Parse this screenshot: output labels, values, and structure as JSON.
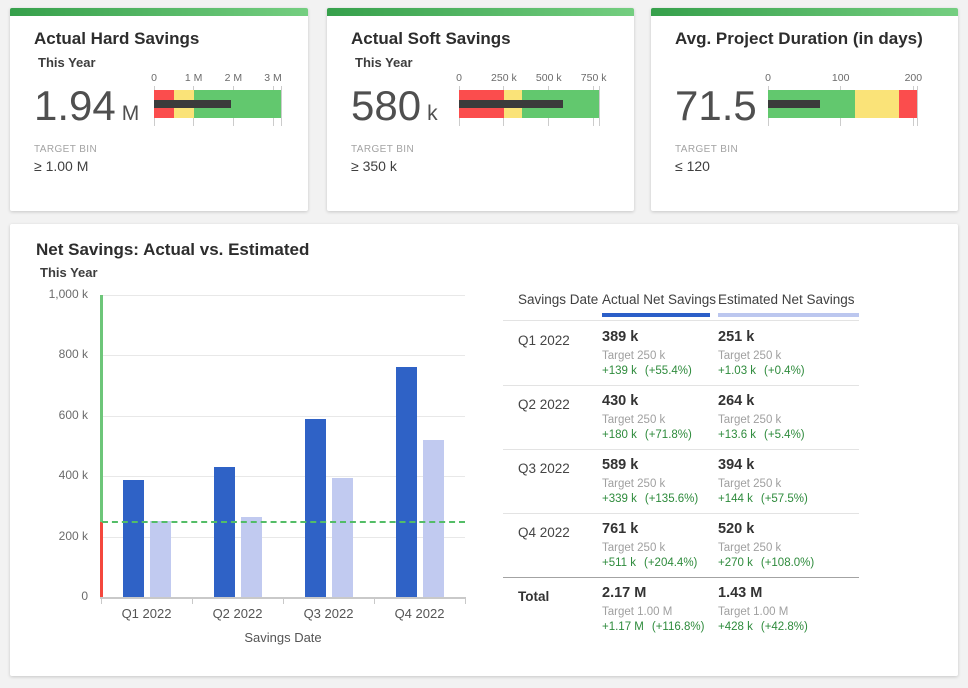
{
  "page": {
    "background": "#f2f2f2"
  },
  "card_strip": {
    "from": "#36a04b",
    "to": "#74ce80"
  },
  "chart_data": [
    {
      "type": "bullet",
      "title": "Actual Hard Savings",
      "subtitle": "This Year",
      "value_display": "1.94",
      "unit": "M",
      "measure": 1.94,
      "axis_max": 3.2,
      "ticks": [
        {
          "value": 0,
          "label": "0"
        },
        {
          "value": 1,
          "label": "1 M"
        },
        {
          "value": 2,
          "label": "2 M"
        },
        {
          "value": 3,
          "label": "3 M"
        }
      ],
      "bands": [
        {
          "from": 0,
          "to": 0.5,
          "color": "#fb4d4d"
        },
        {
          "from": 0.5,
          "to": 1,
          "color": "#fae378"
        },
        {
          "from": 1,
          "to": 3.2,
          "color": "#62c86e"
        }
      ],
      "measure_color": "#3b3b3b",
      "target_bin_label": "TARGET BIN",
      "target_bin": "≥ 1.00 M"
    },
    {
      "type": "bullet",
      "title": "Actual Soft Savings",
      "subtitle": "This Year",
      "value_display": "580",
      "unit": "k",
      "measure": 580,
      "axis_max": 780,
      "ticks": [
        {
          "value": 0,
          "label": "0"
        },
        {
          "value": 250,
          "label": "250 k"
        },
        {
          "value": 500,
          "label": "500 k"
        },
        {
          "value": 750,
          "label": "750 k"
        }
      ],
      "bands": [
        {
          "from": 0,
          "to": 250,
          "color": "#fb4d4d"
        },
        {
          "from": 250,
          "to": 350,
          "color": "#fae378"
        },
        {
          "from": 350,
          "to": 780,
          "color": "#62c86e"
        }
      ],
      "measure_color": "#3b3b3b",
      "target_bin_label": "TARGET BIN",
      "target_bin": "≥ 350 k"
    },
    {
      "type": "bullet",
      "title": "Avg. Project Duration (in days)",
      "subtitle": "",
      "value_display": "71.5",
      "unit": "",
      "measure": 71.5,
      "axis_max": 205,
      "ticks": [
        {
          "value": 0,
          "label": "0"
        },
        {
          "value": 100,
          "label": "100"
        },
        {
          "value": 200,
          "label": "200"
        }
      ],
      "bands": [
        {
          "from": 0,
          "to": 120,
          "color": "#62c86e"
        },
        {
          "from": 120,
          "to": 180,
          "color": "#fae378"
        },
        {
          "from": 180,
          "to": 205,
          "color": "#fb4d4d"
        }
      ],
      "measure_color": "#3b3b3b",
      "target_bin_label": "TARGET BIN",
      "target_bin": "≤ 120"
    },
    {
      "type": "bar",
      "title": "Net Savings: Actual vs. Estimated",
      "subtitle": "This Year",
      "categories": [
        "Q1 2022",
        "Q2 2022",
        "Q3 2022",
        "Q4 2022"
      ],
      "series": [
        {
          "name": "Actual Net Savings",
          "color": "#2f62c6",
          "values": [
            389,
            430,
            589,
            761
          ]
        },
        {
          "name": "Estimated Net Savings",
          "color": "#c1caf0",
          "values": [
            251,
            264,
            394,
            520
          ]
        }
      ],
      "unit": "k",
      "target_value": 250,
      "target_color": "#53bd67",
      "axis_color_above_target": "#6dc679",
      "axis_color_below_target": "#f4473d",
      "xlabel": "Savings Date",
      "ylim": [
        0,
        1000
      ],
      "yticks": [
        {
          "value": 0,
          "label": "0"
        },
        {
          "value": 200,
          "label": "200 k"
        },
        {
          "value": 400,
          "label": "400 k"
        },
        {
          "value": 600,
          "label": "600 k"
        },
        {
          "value": 800,
          "label": "800 k"
        },
        {
          "value": 1000,
          "label": "1,000 k"
        }
      ],
      "grid": true,
      "legend_position": "table-header"
    },
    {
      "type": "table",
      "positive_color": "#2e8b3c",
      "columns": [
        {
          "label": "Savings Date",
          "underline_color": null
        },
        {
          "label": "Actual Net Savings",
          "underline_color": "#2b5fc8"
        },
        {
          "label": "Estimated Net Savings",
          "underline_color": "#bcc7ef"
        }
      ],
      "rows": [
        {
          "date": "Q1 2022",
          "is_total": false,
          "cells": [
            {
              "value": "389 k",
              "target": "Target 250 k",
              "delta": "+139 k",
              "delta_pct": "(+55.4%)"
            },
            {
              "value": "251 k",
              "target": "Target 250 k",
              "delta": "+1.03 k",
              "delta_pct": "(+0.4%)"
            }
          ]
        },
        {
          "date": "Q2 2022",
          "is_total": false,
          "cells": [
            {
              "value": "430 k",
              "target": "Target 250 k",
              "delta": "+180 k",
              "delta_pct": "(+71.8%)"
            },
            {
              "value": "264 k",
              "target": "Target 250 k",
              "delta": "+13.6 k",
              "delta_pct": "(+5.4%)"
            }
          ]
        },
        {
          "date": "Q3 2022",
          "is_total": false,
          "cells": [
            {
              "value": "589 k",
              "target": "Target 250 k",
              "delta": "+339 k",
              "delta_pct": "(+135.6%)"
            },
            {
              "value": "394 k",
              "target": "Target 250 k",
              "delta": "+144 k",
              "delta_pct": "(+57.5%)"
            }
          ]
        },
        {
          "date": "Q4 2022",
          "is_total": false,
          "cells": [
            {
              "value": "761 k",
              "target": "Target 250 k",
              "delta": "+511 k",
              "delta_pct": "(+204.4%)"
            },
            {
              "value": "520 k",
              "target": "Target 250 k",
              "delta": "+270 k",
              "delta_pct": "(+108.0%)"
            }
          ]
        },
        {
          "date": "Total",
          "is_total": true,
          "cells": [
            {
              "value": "2.17 M",
              "target": "Target 1.00 M",
              "delta": "+1.17 M",
              "delta_pct": "(+116.8%)"
            },
            {
              "value": "1.43 M",
              "target": "Target 1.00 M",
              "delta": "+428 k",
              "delta_pct": "(+42.8%)"
            }
          ]
        }
      ]
    }
  ]
}
